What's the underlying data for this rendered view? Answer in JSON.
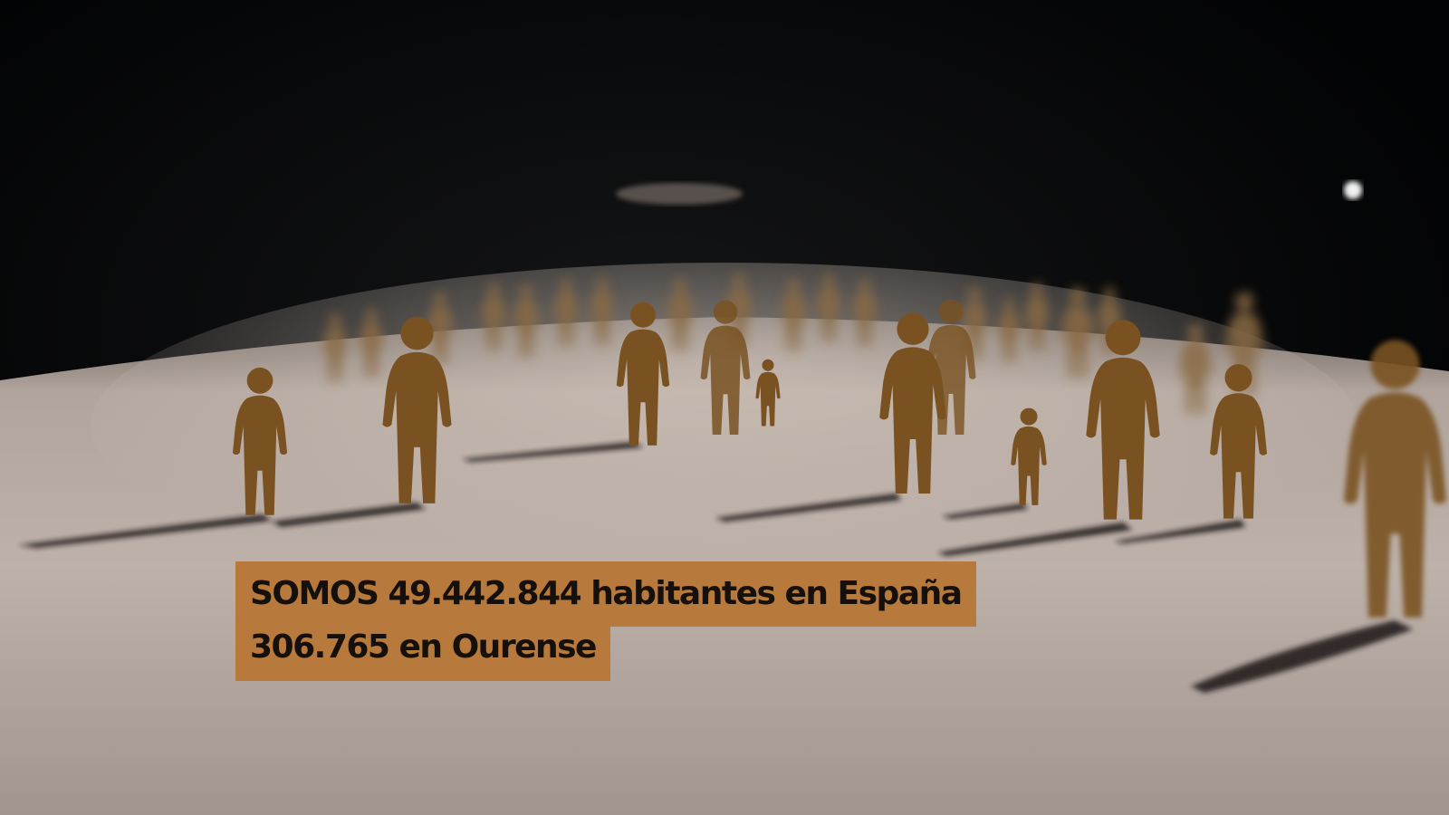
{
  "caption": {
    "line1": "SOMOS 49.442.844 habitantes en España",
    "line2": "306.765 en Ourense",
    "background_color": "#b87a3c",
    "text_color": "#15100b"
  },
  "scene": {
    "description_icon": "paper-people-figures",
    "floor_color": "#b7aba4",
    "backdrop_color": "#050608",
    "figure_color": "#7a5222"
  }
}
